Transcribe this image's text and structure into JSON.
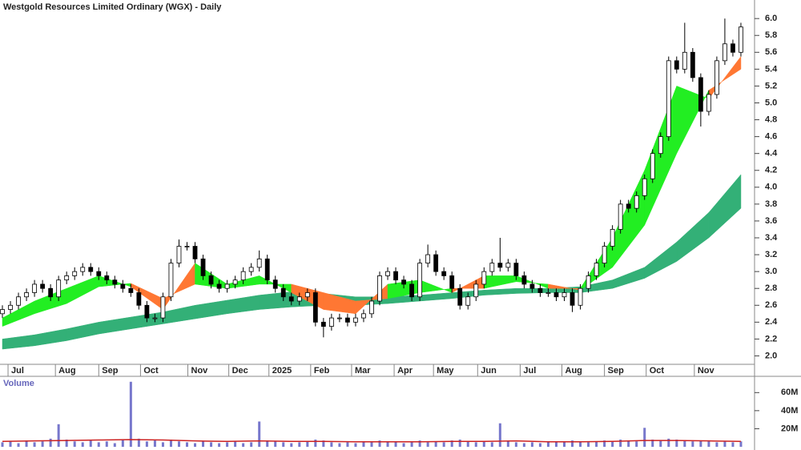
{
  "chart_data": {
    "type": "candlestick",
    "title": "Westgold Resources Limited Ordinary (WGX) - Daily",
    "xlim": [
      -0.3,
      93.5
    ],
    "xticks": [
      {
        "value": 1.5,
        "label": "Jul"
      },
      {
        "value": 7.4,
        "label": "Aug"
      },
      {
        "value": 12.8,
        "label": "Sep"
      },
      {
        "value": 18,
        "label": "Oct"
      },
      {
        "value": 23.9,
        "label": "Nov"
      },
      {
        "value": 29,
        "label": "Dec"
      },
      {
        "value": 34,
        "label": "2025"
      },
      {
        "value": 39.2,
        "label": "Feb"
      },
      {
        "value": 44.3,
        "label": "Mar"
      },
      {
        "value": 49.6,
        "label": "Apr"
      },
      {
        "value": 54.5,
        "label": "May"
      },
      {
        "value": 60,
        "label": "Jun"
      },
      {
        "value": 65.3,
        "label": "Jul"
      },
      {
        "value": 70.5,
        "label": "Aug"
      },
      {
        "value": 75.8,
        "label": "Sep"
      },
      {
        "value": 81,
        "label": "Oct"
      },
      {
        "value": 87,
        "label": "Nov"
      }
    ],
    "ylim": [
      1.9,
      6.22
    ],
    "yticks": [
      {
        "value": 2,
        "label": "2.0"
      },
      2.2,
      2.4,
      2.6,
      2.8,
      {
        "value": 3,
        "label": "3.0"
      },
      3.2,
      3.4,
      3.6,
      3.8,
      {
        "value": 4,
        "label": "4.0"
      },
      4.2,
      4.4,
      4.6,
      4.8,
      {
        "value": 5,
        "label": "5.0"
      },
      5.2,
      5.4,
      5.6,
      5.8,
      {
        "value": 6,
        "label": "6.0"
      }
    ],
    "open": [
      2.5,
      2.55,
      2.6,
      2.7,
      2.75,
      2.85,
      2.8,
      2.7,
      2.9,
      2.95,
      3.0,
      3.05,
      3.0,
      2.95,
      2.9,
      2.85,
      2.8,
      2.75,
      2.6,
      2.45,
      2.45,
      2.7,
      3.1,
      3.3,
      3.3,
      3.15,
      2.95,
      2.85,
      2.8,
      2.85,
      2.9,
      3.0,
      3.05,
      3.15,
      2.9,
      2.8,
      2.7,
      2.65,
      2.7,
      2.75,
      2.4,
      2.35,
      2.45,
      2.45,
      2.4,
      2.45,
      2.5,
      2.65,
      2.95,
      3.0,
      2.9,
      2.85,
      2.7,
      3.1,
      3.2,
      3.0,
      2.95,
      2.8,
      2.6,
      2.7,
      2.85,
      3.0,
      3.1,
      3.05,
      3.1,
      2.95,
      2.85,
      2.8,
      2.75,
      2.75,
      2.7,
      2.75,
      2.6,
      2.8,
      2.95,
      3.1,
      3.3,
      3.5,
      3.8,
      3.75,
      3.9,
      4.1,
      4.4,
      4.6,
      5.5,
      5.4,
      5.6,
      5.3,
      4.9,
      5.1,
      5.5,
      5.7,
      5.6
    ],
    "high": [
      2.6,
      2.65,
      2.75,
      2.8,
      2.9,
      2.9,
      2.85,
      2.95,
      3.0,
      3.05,
      3.1,
      3.1,
      3.05,
      3.0,
      2.95,
      2.9,
      2.85,
      2.8,
      2.65,
      2.5,
      2.75,
      3.15,
      3.38,
      3.35,
      3.35,
      3.2,
      3.0,
      2.9,
      2.9,
      2.95,
      3.05,
      3.1,
      3.25,
      3.2,
      2.95,
      2.85,
      2.75,
      2.75,
      2.8,
      2.8,
      2.45,
      2.5,
      2.5,
      2.5,
      2.5,
      2.55,
      2.7,
      3.0,
      3.05,
      3.05,
      2.95,
      2.9,
      3.15,
      3.32,
      3.25,
      3.05,
      3.0,
      2.85,
      2.75,
      2.9,
      3.05,
      3.15,
      3.4,
      3.15,
      3.15,
      3.0,
      2.9,
      2.85,
      2.8,
      2.8,
      2.8,
      2.8,
      2.85,
      3.0,
      3.15,
      3.35,
      3.55,
      3.85,
      3.85,
      3.95,
      4.15,
      4.45,
      4.65,
      5.55,
      5.55,
      5.95,
      5.65,
      5.35,
      5.15,
      5.55,
      6.0,
      5.75,
      5.95
    ],
    "low": [
      2.45,
      2.5,
      2.55,
      2.65,
      2.7,
      2.75,
      2.65,
      2.65,
      2.85,
      2.9,
      2.95,
      2.95,
      2.9,
      2.85,
      2.8,
      2.75,
      2.7,
      2.55,
      2.4,
      2.4,
      2.4,
      2.65,
      3.05,
      3.25,
      3.1,
      2.9,
      2.8,
      2.75,
      2.75,
      2.8,
      2.85,
      2.95,
      3.0,
      2.85,
      2.75,
      2.65,
      2.6,
      2.6,
      2.65,
      2.35,
      2.22,
      2.3,
      2.4,
      2.35,
      2.35,
      2.4,
      2.45,
      2.6,
      2.9,
      2.85,
      2.8,
      2.65,
      2.65,
      3.05,
      2.95,
      2.9,
      2.75,
      2.55,
      2.55,
      2.65,
      2.8,
      2.95,
      3.0,
      3.0,
      2.9,
      2.8,
      2.75,
      2.7,
      2.7,
      2.65,
      2.65,
      2.52,
      2.55,
      2.75,
      2.9,
      3.05,
      3.25,
      3.45,
      3.7,
      3.7,
      3.85,
      4.05,
      4.35,
      4.55,
      5.35,
      5.35,
      5.25,
      4.72,
      4.85,
      5.05,
      5.45,
      5.55,
      5.55
    ],
    "close": [
      2.55,
      2.6,
      2.7,
      2.75,
      2.85,
      2.8,
      2.7,
      2.9,
      2.95,
      3.0,
      3.05,
      3.0,
      2.95,
      2.9,
      2.85,
      2.8,
      2.75,
      2.6,
      2.45,
      2.45,
      2.7,
      3.1,
      3.3,
      3.3,
      3.15,
      2.95,
      2.85,
      2.8,
      2.85,
      2.9,
      3.0,
      3.05,
      3.15,
      2.9,
      2.8,
      2.7,
      2.65,
      2.7,
      2.75,
      2.4,
      2.35,
      2.45,
      2.45,
      2.4,
      2.45,
      2.5,
      2.65,
      2.95,
      3.0,
      2.9,
      2.85,
      2.7,
      3.1,
      3.2,
      3.0,
      2.95,
      2.8,
      2.6,
      2.7,
      2.85,
      3.0,
      3.1,
      3.05,
      3.1,
      2.95,
      2.85,
      2.8,
      2.75,
      2.75,
      2.7,
      2.75,
      2.6,
      2.8,
      2.95,
      3.1,
      3.3,
      3.5,
      3.8,
      3.75,
      3.9,
      4.1,
      4.4,
      4.6,
      5.5,
      5.4,
      5.6,
      5.3,
      4.9,
      5.1,
      5.5,
      5.7,
      5.6,
      5.9
    ],
    "band_x": [
      0,
      4,
      8,
      12,
      16,
      20,
      24,
      28,
      32,
      36,
      40,
      44,
      48,
      52,
      56,
      60,
      64,
      68,
      72,
      76,
      80,
      84,
      88,
      92
    ],
    "fast": [
      2.45,
      2.65,
      2.8,
      2.95,
      2.82,
      2.55,
      3.1,
      2.85,
      2.95,
      2.75,
      2.55,
      2.5,
      2.85,
      2.9,
      2.75,
      2.95,
      2.95,
      2.8,
      2.8,
      3.4,
      4.2,
      5.2,
      5.05,
      5.55
    ],
    "slow": [
      2.35,
      2.5,
      2.62,
      2.82,
      2.86,
      2.68,
      2.85,
      2.8,
      2.85,
      2.85,
      2.75,
      2.65,
      2.68,
      2.75,
      2.8,
      2.8,
      2.88,
      2.85,
      2.78,
      3.05,
      3.55,
      4.4,
      5.15,
      5.4
    ],
    "long_upper": [
      2.2,
      2.25,
      2.32,
      2.4,
      2.46,
      2.52,
      2.6,
      2.66,
      2.72,
      2.76,
      2.74,
      2.7,
      2.7,
      2.72,
      2.75,
      2.78,
      2.8,
      2.8,
      2.82,
      2.9,
      3.05,
      3.35,
      3.7,
      4.15
    ],
    "long_lower": [
      2.08,
      2.12,
      2.18,
      2.26,
      2.32,
      2.38,
      2.44,
      2.5,
      2.55,
      2.58,
      2.6,
      2.6,
      2.62,
      2.65,
      2.68,
      2.72,
      2.74,
      2.75,
      2.75,
      2.8,
      2.92,
      3.12,
      3.4,
      3.75
    ],
    "up_color": "#22ee22",
    "down_color": "#ff7733",
    "long_color": "#33b077",
    "volume_title": "Volume",
    "volume_color": "#7777cc",
    "volume_ma_color": "#cc2222",
    "vlim": [
      0,
      78000000
    ],
    "vticks": [
      {
        "value": 20000000,
        "label": "20M"
      },
      {
        "value": 40000000,
        "label": "40M"
      },
      {
        "value": 60000000,
        "label": "60M"
      }
    ],
    "volume": [
      5000000,
      6000000,
      4000000,
      7000000,
      5000000,
      6000000,
      9000000,
      25000000,
      8000000,
      6000000,
      5000000,
      7000000,
      5000000,
      6000000,
      4000000,
      8000000,
      72000000,
      9000000,
      6000000,
      7000000,
      5000000,
      8000000,
      6000000,
      5000000,
      4000000,
      6000000,
      5000000,
      4000000,
      5000000,
      6000000,
      4000000,
      5000000,
      28000000,
      7000000,
      6000000,
      5000000,
      4000000,
      5000000,
      6000000,
      8000000,
      7000000,
      5000000,
      4000000,
      5000000,
      4000000,
      5000000,
      6000000,
      7000000,
      6000000,
      5000000,
      4000000,
      6000000,
      7000000,
      5000000,
      6000000,
      5000000,
      7000000,
      8000000,
      6000000,
      5000000,
      6000000,
      5000000,
      26000000,
      6000000,
      5000000,
      4000000,
      5000000,
      4000000,
      5000000,
      6000000,
      5000000,
      7000000,
      6000000,
      5000000,
      6000000,
      7000000,
      6000000,
      8000000,
      7000000,
      6000000,
      21000000,
      8000000,
      7000000,
      9000000,
      8000000,
      7000000,
      6000000,
      7000000,
      6000000,
      5000000,
      6000000,
      5000000,
      6000000
    ],
    "volume_ma": [
      6000000,
      6500000,
      7000000,
      7500000,
      8000000,
      7500000,
      6500000,
      6000000,
      6500000,
      6000000,
      6000000,
      5500000,
      5500000,
      5500000,
      6000000,
      6000000,
      6500000,
      5500000,
      5500000,
      6000000,
      7000000,
      7000000,
      6500000,
      6000000
    ]
  }
}
